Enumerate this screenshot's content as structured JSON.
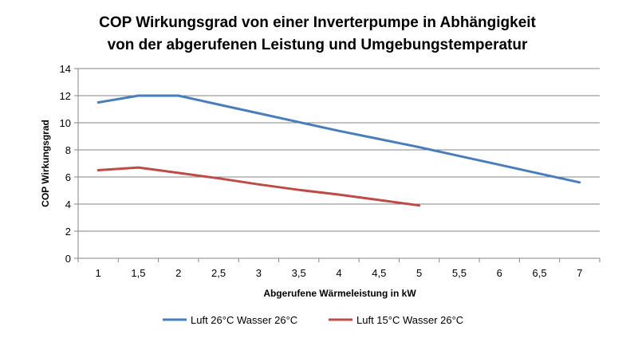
{
  "chart_data": {
    "type": "line",
    "title_lines": [
      "COP Wirkungsgrad von einer Inverterpumpe in Abhängigkeit",
      "von der abgerufenen Leistung und Umgebungstemperatur"
    ],
    "xlabel": "Abgerufene Wärmeleistung in kW",
    "ylabel": "COP Wirkungsgrad",
    "categories": [
      "1",
      "1,5",
      "2",
      "2,5",
      "3",
      "3,5",
      "4",
      "4,5",
      "5",
      "5,5",
      "6",
      "6,5",
      "7"
    ],
    "y_ticks": [
      "0",
      "2",
      "4",
      "6",
      "8",
      "10",
      "12",
      "14"
    ],
    "ylim": [
      0,
      14
    ],
    "grid": true,
    "legend_position": "bottom",
    "series": [
      {
        "name": "Luft 26°C Wasser 26°C",
        "color": "#4a7ebb",
        "values": [
          11.5,
          12.0,
          12.0,
          11.35,
          10.7,
          10.05,
          9.4,
          8.8,
          8.2,
          7.55,
          6.9,
          6.25,
          5.6
        ]
      },
      {
        "name": "Luft 15°C Wasser 26°C",
        "color": "#be4b48",
        "values": [
          6.5,
          6.7,
          6.3,
          5.9,
          5.45,
          5.05,
          4.7,
          4.3,
          3.9,
          null,
          null,
          null,
          null
        ]
      }
    ]
  }
}
